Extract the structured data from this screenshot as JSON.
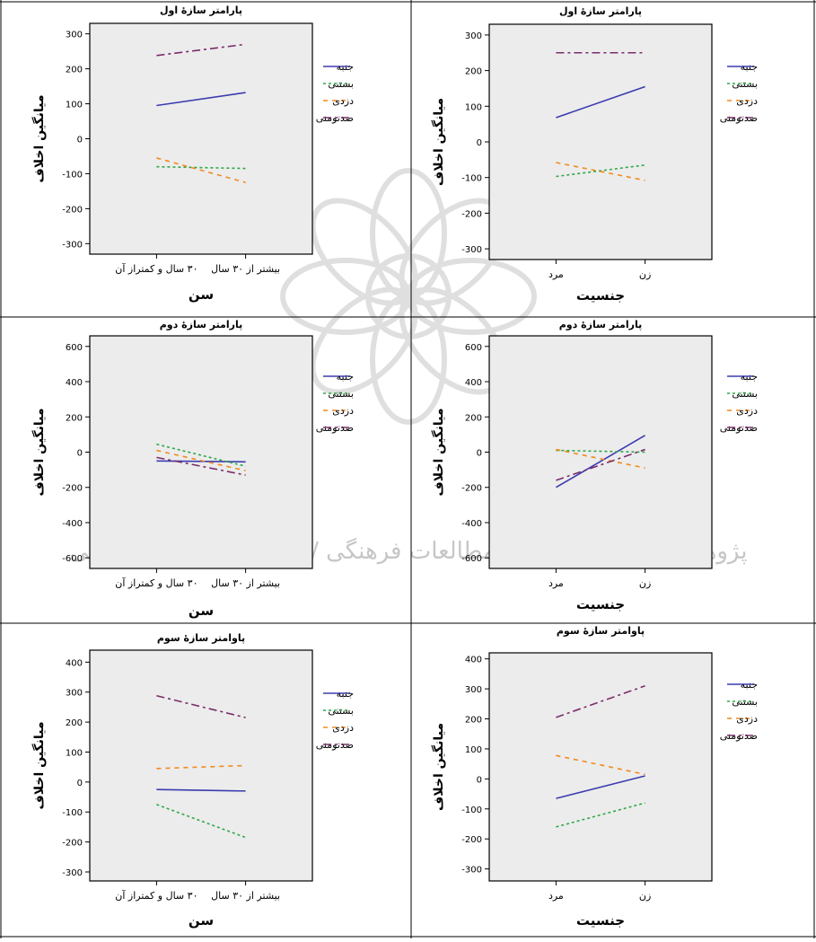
{
  "watermark": "پژوهشگاه علوم انسانی و مطالعات فرهنگی / پرتال جامع علوم انسانی",
  "colors": {
    "جنبه": "#3b3bb0",
    "بستنی": "#2ea84a",
    "دزدی": "#f08a1e",
    "صدتومنی": "#7a2d6a",
    "plot_bg": "#ececec",
    "frame": "#000000"
  },
  "legend_placement": "right",
  "chart_data": [
    {
      "type": "line",
      "title": "پارامتر سازهٔ اول",
      "xlabel": "سن",
      "ylabel": "میانگین اخلاف",
      "categories": [
        "۳۰ سال و کمتراز آن",
        "بیشتر از ۳۰ سال"
      ],
      "ylim": [
        -330,
        330
      ],
      "yticks": [
        -300,
        -200,
        -100,
        0,
        100,
        200,
        300
      ],
      "series": [
        {
          "name": "جنبه",
          "values": [
            95,
            132
          ]
        },
        {
          "name": "بستنی",
          "values": [
            -80,
            -85
          ]
        },
        {
          "name": "دزدی",
          "values": [
            -55,
            -125
          ]
        },
        {
          "name": "صدتومنی",
          "values": [
            238,
            270
          ]
        }
      ]
    },
    {
      "type": "line",
      "title": "پارامتر سازهٔ اول",
      "xlabel": "جنسیت",
      "ylabel": "میانگین اخلاف",
      "categories": [
        "مرد",
        "زن"
      ],
      "ylim": [
        -330,
        330
      ],
      "yticks": [
        -300,
        -200,
        -100,
        0,
        100,
        200,
        300
      ],
      "series": [
        {
          "name": "جنبه",
          "values": [
            68,
            155
          ]
        },
        {
          "name": "بستنی",
          "values": [
            -97,
            -65
          ]
        },
        {
          "name": "دزدی",
          "values": [
            -58,
            -108
          ]
        },
        {
          "name": "صدتومنی",
          "values": [
            250,
            250
          ]
        }
      ]
    },
    {
      "type": "line",
      "title": "پارامتر سازهٔ دوم",
      "xlabel": "سن",
      "ylabel": "میانگین اخلاف",
      "categories": [
        "۳۰ سال و کمتراز آن",
        "بیشتر از ۳۰ سال"
      ],
      "ylim": [
        -660,
        660
      ],
      "yticks": [
        -600,
        -400,
        -200,
        0,
        200,
        400,
        600
      ],
      "series": [
        {
          "name": "جنبه",
          "values": [
            -50,
            -55
          ]
        },
        {
          "name": "بستنی",
          "values": [
            45,
            -80
          ]
        },
        {
          "name": "دزدی",
          "values": [
            10,
            -105
          ]
        },
        {
          "name": "صدتومنی",
          "values": [
            -30,
            -130
          ]
        }
      ]
    },
    {
      "type": "line",
      "title": "پارامتر سازهٔ دوم",
      "xlabel": "جنسیت",
      "ylabel": "میانگین اخلاف",
      "categories": [
        "مرد",
        "زن"
      ],
      "ylim": [
        -660,
        660
      ],
      "yticks": [
        -600,
        -400,
        -200,
        0,
        200,
        400,
        600
      ],
      "series": [
        {
          "name": "جنبه",
          "values": [
            -200,
            95
          ]
        },
        {
          "name": "بستنی",
          "values": [
            10,
            0
          ]
        },
        {
          "name": "دزدی",
          "values": [
            15,
            -90
          ]
        },
        {
          "name": "صدتومنی",
          "values": [
            -160,
            15
          ]
        }
      ]
    },
    {
      "type": "line",
      "title": "پاوامتر سازهٔ سوم",
      "xlabel": "سن",
      "ylabel": "میانگین اخلاف",
      "categories": [
        "۳۰ سال و کمتراز آن",
        "بیشتر از ۳۰ سال"
      ],
      "ylim": [
        -330,
        440
      ],
      "yticks": [
        -300,
        -200,
        -100,
        0,
        100,
        200,
        300,
        400
      ],
      "series": [
        {
          "name": "جنبه",
          "values": [
            -25,
            -30
          ]
        },
        {
          "name": "بستنی",
          "values": [
            -75,
            -185
          ]
        },
        {
          "name": "دزدی",
          "values": [
            45,
            55
          ]
        },
        {
          "name": "صدتومنی",
          "values": [
            288,
            215
          ]
        }
      ]
    },
    {
      "type": "line",
      "title": "پاوامتر سازهٔ سوم",
      "xlabel": "جنسیت",
      "ylabel": "میانگین اخلاف",
      "categories": [
        "مرد",
        "زن"
      ],
      "ylim": [
        -340,
        420
      ],
      "yticks": [
        -300,
        -200,
        -100,
        0,
        100,
        200,
        300,
        400
      ],
      "series": [
        {
          "name": "جنبه",
          "values": [
            -65,
            10
          ]
        },
        {
          "name": "بستنی",
          "values": [
            -160,
            -80
          ]
        },
        {
          "name": "دزدی",
          "values": [
            78,
            15
          ]
        },
        {
          "name": "صدتومنی",
          "values": [
            205,
            310
          ]
        }
      ]
    }
  ]
}
